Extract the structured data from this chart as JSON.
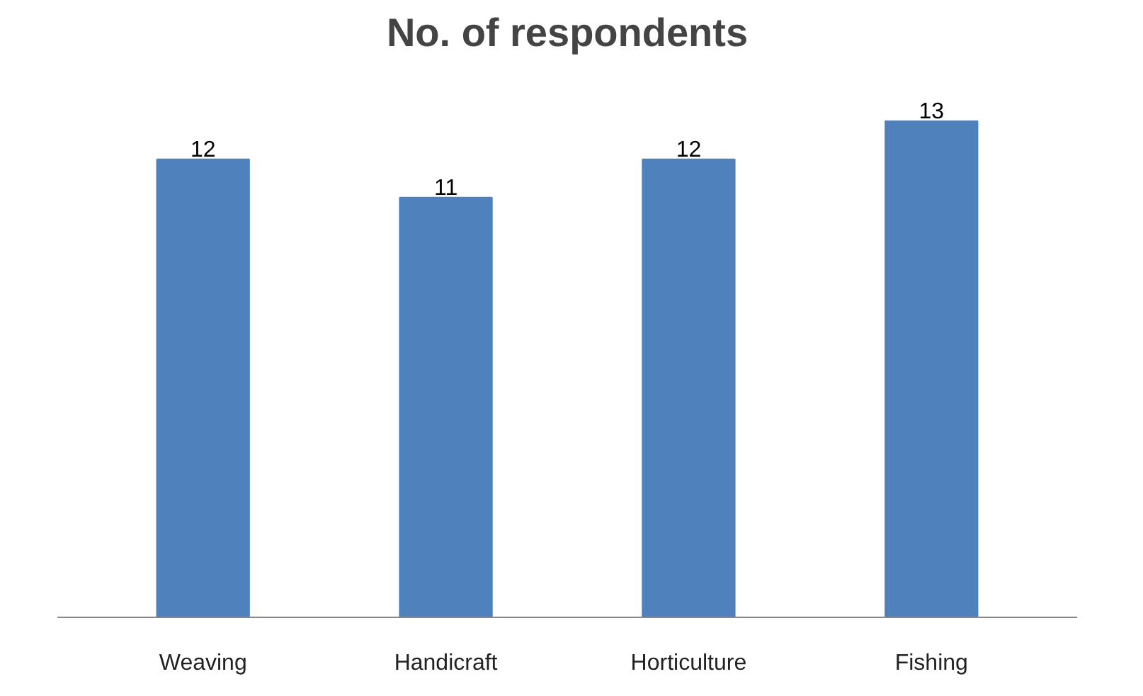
{
  "chart_data": {
    "type": "bar",
    "title": "No. of respondents",
    "categories": [
      "Weaving",
      "Handicraft",
      "Horticulture",
      "Fishing"
    ],
    "values": [
      12,
      11,
      12,
      13
    ],
    "color": "#4f81bd",
    "data_labels": true,
    "grid": false,
    "tick_labels": "x"
  }
}
